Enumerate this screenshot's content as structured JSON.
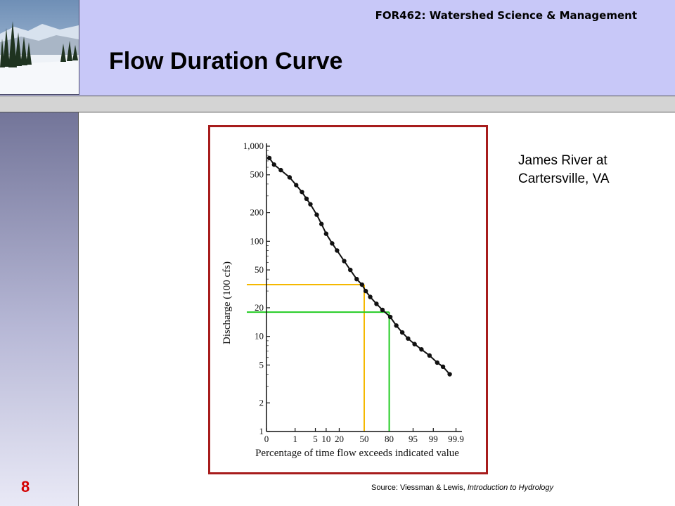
{
  "header": {
    "course_title": "FOR462: Watershed Science & Management",
    "slide_title": "Flow Duration Curve"
  },
  "slide_number": "8",
  "annotation": {
    "line1": "James River at",
    "line2": "Cartersville, VA"
  },
  "source": {
    "prefix": "Source:  Viessman & Lewis, ",
    "book": "Introduction to Hydrology"
  },
  "colors": {
    "header_band": "#c8c8f8",
    "frame": "#a71c1c",
    "orange_line": "#f5b800",
    "green_line": "#22cc22",
    "page_number": "#d40000"
  },
  "chart_data": {
    "type": "scatter",
    "xlabel": "Percentage of time flow exceeds indicated value",
    "ylabel": "Discharge (100 cfs)",
    "x_scale": "normal-probability",
    "y_scale": "log",
    "ylim": [
      1,
      1000
    ],
    "x_ticks": [
      "0",
      "1",
      "5",
      "10",
      "20",
      "50",
      "80",
      "95",
      "99",
      "99.9"
    ],
    "y_ticks": [
      "1,000",
      "500",
      "200",
      "100",
      "50",
      "20",
      "10",
      "5",
      "2",
      "1"
    ],
    "points": [
      [
        0.07,
        750
      ],
      [
        0.12,
        640
      ],
      [
        0.25,
        560
      ],
      [
        0.6,
        470
      ],
      [
        1.1,
        390
      ],
      [
        1.8,
        330
      ],
      [
        2.6,
        280
      ],
      [
        3.5,
        245
      ],
      [
        5.5,
        190
      ],
      [
        7.5,
        152
      ],
      [
        10,
        120
      ],
      [
        14,
        95
      ],
      [
        18,
        80
      ],
      [
        25,
        62
      ],
      [
        32,
        50
      ],
      [
        40,
        40
      ],
      [
        47,
        35
      ],
      [
        52,
        30
      ],
      [
        58,
        26
      ],
      [
        66,
        22
      ],
      [
        73,
        19
      ],
      [
        81,
        16
      ],
      [
        86,
        13
      ],
      [
        90,
        11
      ],
      [
        93,
        9.5
      ],
      [
        95.5,
        8.3
      ],
      [
        97.3,
        7.3
      ],
      [
        98.6,
        6.3
      ],
      [
        99.3,
        5.3
      ],
      [
        99.6,
        4.8
      ],
      [
        99.8,
        4.0
      ]
    ],
    "readings": [
      {
        "color": "orange",
        "x": 50,
        "y": 35
      },
      {
        "color": "green",
        "x": 80,
        "y": 18
      }
    ]
  }
}
